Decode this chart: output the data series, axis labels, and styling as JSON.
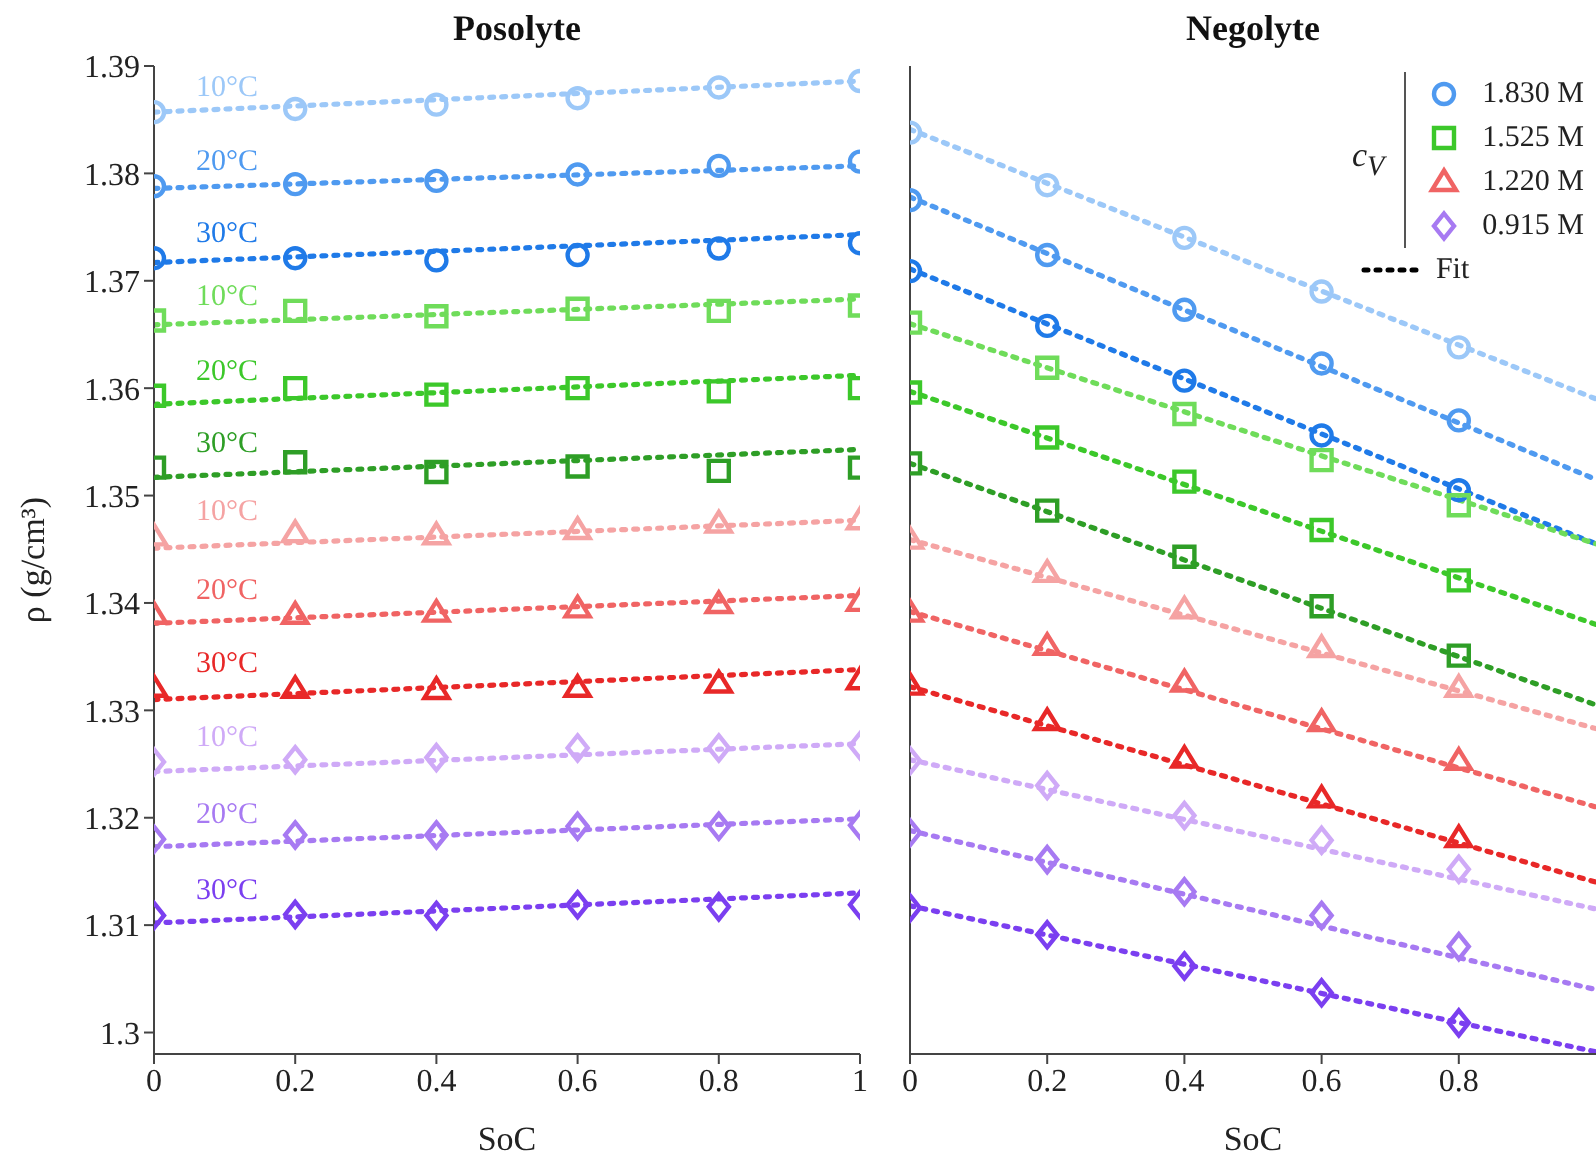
{
  "chart_data": [
    {
      "type": "scatter",
      "title": "Posolyte",
      "xlabel": "SoC",
      "ylabel": "ρ (g/cm³)",
      "xlim": [
        0,
        1
      ],
      "xticks": [
        0,
        0.2,
        0.4,
        0.6,
        0.8,
        1
      ],
      "ylim": [
        1.298,
        1.39
      ],
      "yticks": [
        1.3,
        1.31,
        1.32,
        1.33,
        1.34,
        1.35,
        1.36,
        1.37,
        1.38,
        1.39
      ],
      "annotations": [
        "10°C",
        "20°C",
        "30°C",
        "10°C",
        "20°C",
        "30°C",
        "10°C",
        "20°C",
        "30°C",
        "10°C",
        "20°C",
        "30°C"
      ],
      "series": [
        {
          "type": "scatter",
          "color": "#9cc8f8",
          "marker": "circle",
          "x": [
            0,
            0.2,
            0.4,
            0.6,
            0.8,
            1
          ],
          "values": [
            1.3857,
            1.386,
            1.3864,
            1.387,
            1.388,
            1.3886
          ]
        },
        {
          "type": "line",
          "color": "#9cc8f8",
          "line_style": "dotted",
          "x": [
            0,
            1
          ],
          "values": [
            1.3857,
            1.3886
          ]
        },
        {
          "type": "scatter",
          "color": "#4f9af0",
          "marker": "circle",
          "x": [
            0,
            0.2,
            0.4,
            0.6,
            0.8,
            1
          ],
          "values": [
            1.3788,
            1.379,
            1.3793,
            1.3799,
            1.3807,
            1.3811
          ]
        },
        {
          "type": "line",
          "color": "#4f9af0",
          "line_style": "dotted",
          "x": [
            0,
            1
          ],
          "values": [
            1.3786,
            1.3807
          ]
        },
        {
          "type": "scatter",
          "color": "#1f7ae8",
          "marker": "circle",
          "x": [
            0,
            0.2,
            0.4,
            0.6,
            0.8,
            1
          ],
          "values": [
            1.3721,
            1.3721,
            1.3719,
            1.3724,
            1.373,
            1.3735
          ]
        },
        {
          "type": "line",
          "color": "#1f7ae8",
          "line_style": "dotted",
          "x": [
            0,
            1
          ],
          "values": [
            1.3717,
            1.3743
          ]
        },
        {
          "type": "scatter",
          "color": "#6fdc5a",
          "marker": "square",
          "x": [
            0,
            0.2,
            0.4,
            0.6,
            0.8,
            1
          ],
          "values": [
            1.3663,
            1.3672,
            1.3667,
            1.3674,
            1.3672,
            1.3677
          ]
        },
        {
          "type": "line",
          "color": "#6fdc5a",
          "line_style": "dotted",
          "x": [
            0,
            1
          ],
          "values": [
            1.3659,
            1.3683
          ]
        },
        {
          "type": "scatter",
          "color": "#3cc82a",
          "marker": "square",
          "x": [
            0,
            0.2,
            0.4,
            0.6,
            0.8,
            1
          ],
          "values": [
            1.3593,
            1.36,
            1.3594,
            1.36,
            1.3597,
            1.36
          ]
        },
        {
          "type": "line",
          "color": "#3cc82a",
          "line_style": "dotted",
          "x": [
            0,
            1
          ],
          "values": [
            1.3585,
            1.3612
          ]
        },
        {
          "type": "scatter",
          "color": "#2e9e26",
          "marker": "square",
          "x": [
            0,
            0.2,
            0.4,
            0.6,
            0.8,
            1
          ],
          "values": [
            1.3526,
            1.3531,
            1.3522,
            1.3527,
            1.3523,
            1.3526
          ]
        },
        {
          "type": "line",
          "color": "#2e9e26",
          "line_style": "dotted",
          "x": [
            0,
            1
          ],
          "values": [
            1.3517,
            1.3543
          ]
        },
        {
          "type": "scatter",
          "color": "#f5a3a3",
          "marker": "triangle",
          "x": [
            0,
            0.2,
            0.4,
            0.6,
            0.8,
            1
          ],
          "values": [
            1.3462,
            1.3465,
            1.3463,
            1.3468,
            1.3474,
            1.3477
          ]
        },
        {
          "type": "line",
          "color": "#f5a3a3",
          "line_style": "dotted",
          "x": [
            0,
            1
          ],
          "values": [
            1.3451,
            1.3477
          ]
        },
        {
          "type": "scatter",
          "color": "#f06464",
          "marker": "triangle",
          "x": [
            0,
            0.2,
            0.4,
            0.6,
            0.8,
            1
          ],
          "values": [
            1.3389,
            1.3389,
            1.3391,
            1.3395,
            1.3399,
            1.3401
          ]
        },
        {
          "type": "line",
          "color": "#f06464",
          "line_style": "dotted",
          "x": [
            0,
            1
          ],
          "values": [
            1.3381,
            1.3407
          ]
        },
        {
          "type": "scatter",
          "color": "#e82828",
          "marker": "triangle",
          "x": [
            0,
            0.2,
            0.4,
            0.6,
            0.8,
            1
          ],
          "values": [
            1.3321,
            1.332,
            1.3319,
            1.3321,
            1.3325,
            1.3328
          ]
        },
        {
          "type": "line",
          "color": "#e82828",
          "line_style": "dotted",
          "x": [
            0,
            1
          ],
          "values": [
            1.331,
            1.3338
          ]
        },
        {
          "type": "scatter",
          "color": "#cfaaf7",
          "marker": "diamond",
          "x": [
            0,
            0.2,
            0.4,
            0.6,
            0.8,
            1
          ],
          "values": [
            1.3252,
            1.3254,
            1.3256,
            1.3265,
            1.3265,
            1.3267
          ]
        },
        {
          "type": "line",
          "color": "#cfaaf7",
          "line_style": "dotted",
          "x": [
            0,
            1
          ],
          "values": [
            1.3243,
            1.3269
          ]
        },
        {
          "type": "scatter",
          "color": "#a77af2",
          "marker": "diamond",
          "x": [
            0,
            0.2,
            0.4,
            0.6,
            0.8,
            1
          ],
          "values": [
            1.318,
            1.3184,
            1.3184,
            1.3192,
            1.3192,
            1.3193
          ]
        },
        {
          "type": "line",
          "color": "#a77af2",
          "line_style": "dotted",
          "x": [
            0,
            1
          ],
          "values": [
            1.3173,
            1.3199
          ]
        },
        {
          "type": "scatter",
          "color": "#7b3ff0",
          "marker": "diamond",
          "x": [
            0,
            0.2,
            0.4,
            0.6,
            0.8,
            1
          ],
          "values": [
            1.3109,
            1.311,
            1.3109,
            1.3119,
            1.3117,
            1.3119
          ]
        },
        {
          "type": "line",
          "color": "#7b3ff0",
          "line_style": "dotted",
          "x": [
            0,
            1
          ],
          "values": [
            1.3102,
            1.313
          ]
        }
      ]
    },
    {
      "type": "scatter",
      "title": "Negolyte",
      "xlabel": "SoC",
      "xlim": [
        0,
        1
      ],
      "xticks": [
        0,
        0.2,
        0.4,
        0.6,
        0.8
      ],
      "ylim": [
        1.298,
        1.39
      ],
      "yticks": [
        1.3,
        1.31,
        1.32,
        1.33,
        1.34,
        1.35,
        1.36,
        1.37,
        1.38,
        1.39
      ],
      "tick_labels": "x",
      "legend": "top right",
      "legend_title": "c$_{V}$",
      "annotations": [
        "Fit"
      ],
      "series": [
        {
          "type": "scatter",
          "color": "#9cc8f8",
          "marker": "circle",
          "x": [
            0,
            0.2,
            0.4,
            0.6,
            0.8
          ],
          "values": [
            1.3838,
            1.3789,
            1.374,
            1.369,
            1.3638
          ]
        },
        {
          "type": "line",
          "color": "#9cc8f8",
          "line_style": "dotted",
          "x": [
            0,
            1
          ],
          "values": [
            1.3841,
            1.359
          ]
        },
        {
          "type": "scatter",
          "name": "1.830 M",
          "color": "#4f9af0",
          "marker": "circle",
          "x": [
            0,
            0.2,
            0.4,
            0.6,
            0.8
          ],
          "values": [
            1.3775,
            1.3724,
            1.3673,
            1.3623,
            1.357
          ]
        },
        {
          "type": "line",
          "color": "#4f9af0",
          "line_style": "dotted",
          "x": [
            0,
            1
          ],
          "values": [
            1.3778,
            1.3515
          ]
        },
        {
          "type": "scatter",
          "color": "#1f7ae8",
          "marker": "circle",
          "x": [
            0,
            0.2,
            0.4,
            0.6,
            0.8
          ],
          "values": [
            1.3709,
            1.3658,
            1.3607,
            1.3556,
            1.3505
          ]
        },
        {
          "type": "line",
          "color": "#1f7ae8",
          "line_style": "dotted",
          "x": [
            0,
            1
          ],
          "values": [
            1.3711,
            1.3455
          ]
        },
        {
          "type": "scatter",
          "color": "#6fdc5a",
          "marker": "square",
          "x": [
            0,
            0.2,
            0.4,
            0.6,
            0.8
          ],
          "values": [
            1.3661,
            1.3619,
            1.3576,
            1.3533,
            1.3491
          ]
        },
        {
          "type": "line",
          "color": "#6fdc5a",
          "line_style": "dotted",
          "x": [
            0,
            1
          ],
          "values": [
            1.366,
            1.3455
          ]
        },
        {
          "type": "scatter",
          "name": "1.525 M",
          "color": "#3cc82a",
          "marker": "square",
          "x": [
            0,
            0.2,
            0.4,
            0.6,
            0.8
          ],
          "values": [
            1.3596,
            1.3554,
            1.3513,
            1.3468,
            1.3421
          ]
        },
        {
          "type": "line",
          "color": "#3cc82a",
          "line_style": "dotted",
          "x": [
            0,
            1
          ],
          "values": [
            1.3597,
            1.338
          ]
        },
        {
          "type": "scatter",
          "color": "#2e9e26",
          "marker": "square",
          "x": [
            0,
            0.2,
            0.4,
            0.6,
            0.8
          ],
          "values": [
            1.353,
            1.3486,
            1.3443,
            1.3397,
            1.3351
          ]
        },
        {
          "type": "line",
          "color": "#2e9e26",
          "line_style": "dotted",
          "x": [
            0,
            1
          ],
          "values": [
            1.353,
            1.3305
          ]
        },
        {
          "type": "scatter",
          "color": "#f5a3a3",
          "marker": "triangle",
          "x": [
            0,
            0.2,
            0.4,
            0.6,
            0.8
          ],
          "values": [
            1.3459,
            1.3428,
            1.3394,
            1.3358,
            1.3321
          ]
        },
        {
          "type": "line",
          "color": "#f5a3a3",
          "line_style": "dotted",
          "x": [
            0,
            1
          ],
          "values": [
            1.3459,
            1.3283
          ]
        },
        {
          "type": "scatter",
          "name": "1.220 M",
          "color": "#f06464",
          "marker": "triangle",
          "x": [
            0,
            0.2,
            0.4,
            0.6,
            0.8
          ],
          "values": [
            1.3391,
            1.336,
            1.3326,
            1.3289,
            1.3253
          ]
        },
        {
          "type": "line",
          "color": "#f06464",
          "line_style": "dotted",
          "x": [
            0,
            1
          ],
          "values": [
            1.3392,
            1.321
          ]
        },
        {
          "type": "scatter",
          "color": "#e82828",
          "marker": "triangle",
          "x": [
            0,
            0.2,
            0.4,
            0.6,
            0.8
          ],
          "values": [
            1.3323,
            1.329,
            1.3255,
            1.3218,
            1.3181
          ]
        },
        {
          "type": "line",
          "color": "#e82828",
          "line_style": "dotted",
          "x": [
            0,
            1
          ],
          "values": [
            1.3322,
            1.314
          ]
        },
        {
          "type": "scatter",
          "color": "#cfaaf7",
          "marker": "diamond",
          "x": [
            0,
            0.2,
            0.4,
            0.6,
            0.8
          ],
          "values": [
            1.3253,
            1.323,
            1.3202,
            1.3179,
            1.3152
          ]
        },
        {
          "type": "line",
          "color": "#cfaaf7",
          "line_style": "dotted",
          "x": [
            0,
            1
          ],
          "values": [
            1.3254,
            1.3115
          ]
        },
        {
          "type": "scatter",
          "name": "0.915 M",
          "color": "#a77af2",
          "marker": "diamond",
          "x": [
            0,
            0.2,
            0.4,
            0.6,
            0.8
          ],
          "values": [
            1.3186,
            1.3161,
            1.3131,
            1.3109,
            1.308
          ]
        },
        {
          "type": "line",
          "color": "#a77af2",
          "line_style": "dotted",
          "x": [
            0,
            1
          ],
          "values": [
            1.3188,
            1.304
          ]
        },
        {
          "type": "scatter",
          "color": "#7b3ff0",
          "marker": "diamond",
          "x": [
            0,
            0.2,
            0.4,
            0.6,
            0.8
          ],
          "values": [
            1.3116,
            1.3091,
            1.3062,
            1.3037,
            1.3009
          ]
        },
        {
          "type": "line",
          "color": "#7b3ff0",
          "line_style": "dotted",
          "x": [
            0,
            1
          ],
          "values": [
            1.3118,
            1.2982
          ]
        }
      ]
    }
  ]
}
